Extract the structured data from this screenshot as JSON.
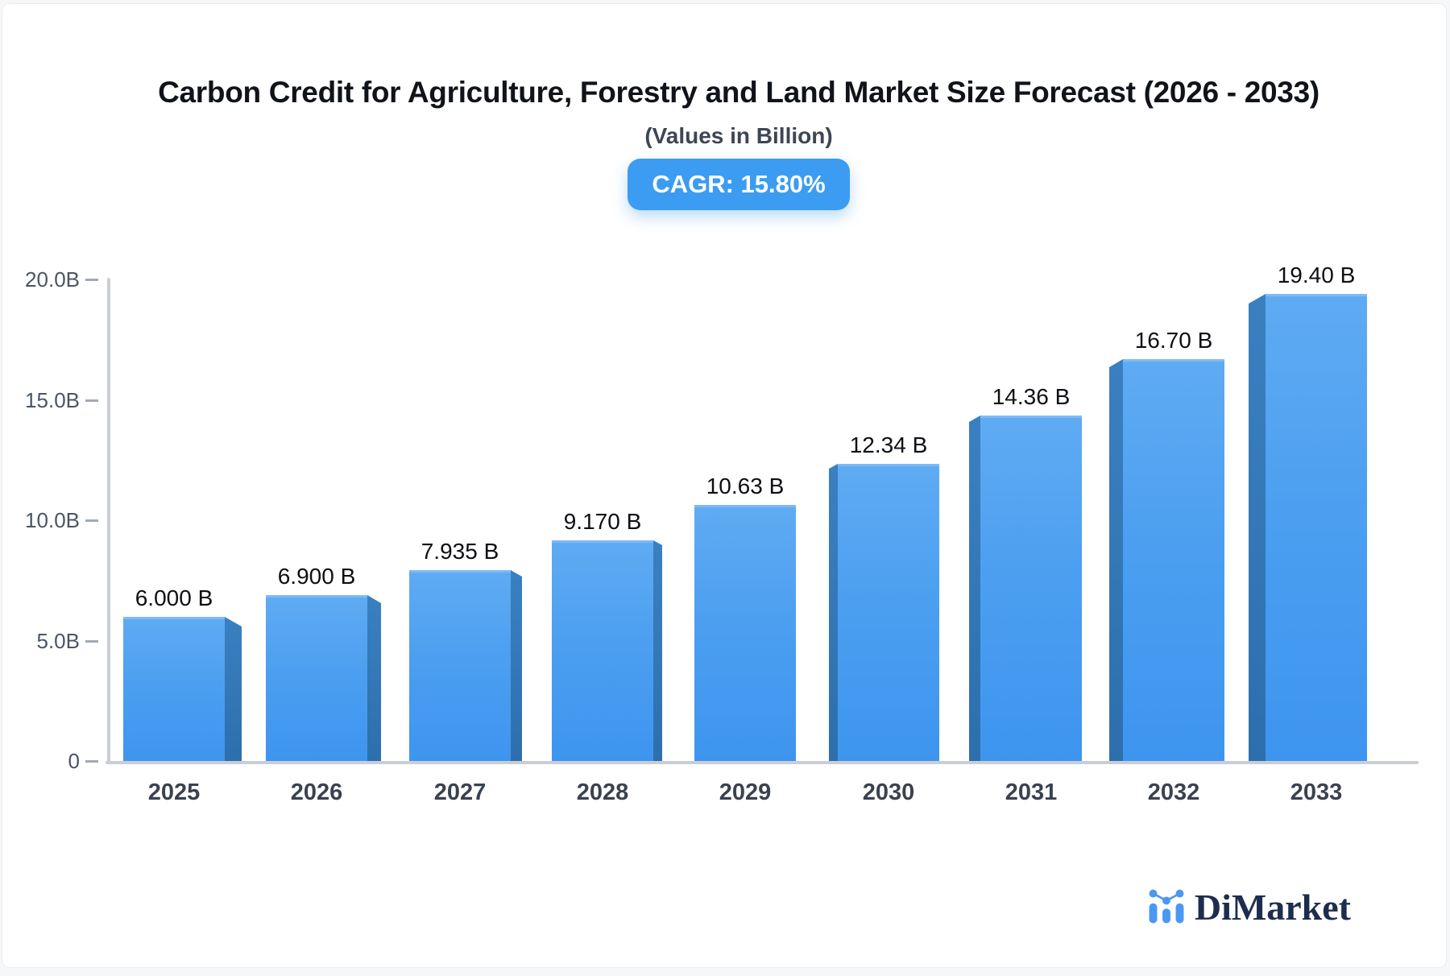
{
  "page": {
    "background_color": "#f6f7f9",
    "card_background_color": "#ffffff"
  },
  "header": {
    "title": "Carbon Credit for Agriculture, Forestry and Land Market Size Forecast (2026 - 2033)",
    "subtitle": "(Values in Billion)",
    "cagr_badge": "CAGR: 15.80%",
    "badge_color": "#3b9cf1"
  },
  "chart_data": {
    "type": "bar",
    "style": "3d-perspective-center-vanishing-point",
    "title": "Carbon Credit for Agriculture, Forestry and Land Market Size Forecast (2026 - 2033)",
    "subtitle": "(Values in Billion)",
    "cagr_percent": 15.8,
    "unit": "Billion",
    "categories": [
      "2025",
      "2026",
      "2027",
      "2028",
      "2029",
      "2030",
      "2031",
      "2032",
      "2033"
    ],
    "values": [
      6.0,
      6.9,
      7.935,
      9.17,
      10.63,
      12.34,
      14.36,
      16.7,
      19.4
    ],
    "value_labels": [
      "6.000 B",
      "6.900 B",
      "7.935 B",
      "9.170 B",
      "10.63 B",
      "12.34 B",
      "14.36 B",
      "16.70 B",
      "19.40 B"
    ],
    "ylim": [
      0,
      20
    ],
    "yticks": [
      0,
      5,
      10,
      15,
      20
    ],
    "ytick_labels": [
      "0",
      "5.0B",
      "10.0B",
      "15.0B",
      "20.0B"
    ],
    "grid": false,
    "legend": false,
    "bar_face_color_top": "#5fabf3",
    "bar_face_color_bottom": "#3e95ef",
    "bar_side_color": "#2f74b4",
    "axis_color": "#c9ced6"
  },
  "footer": {
    "brand": "DiMarket",
    "logo_icon": "bar-chart-with-dots-icon",
    "logo_blue": "#4b98f3",
    "logo_navy": "#1e2d4d"
  }
}
